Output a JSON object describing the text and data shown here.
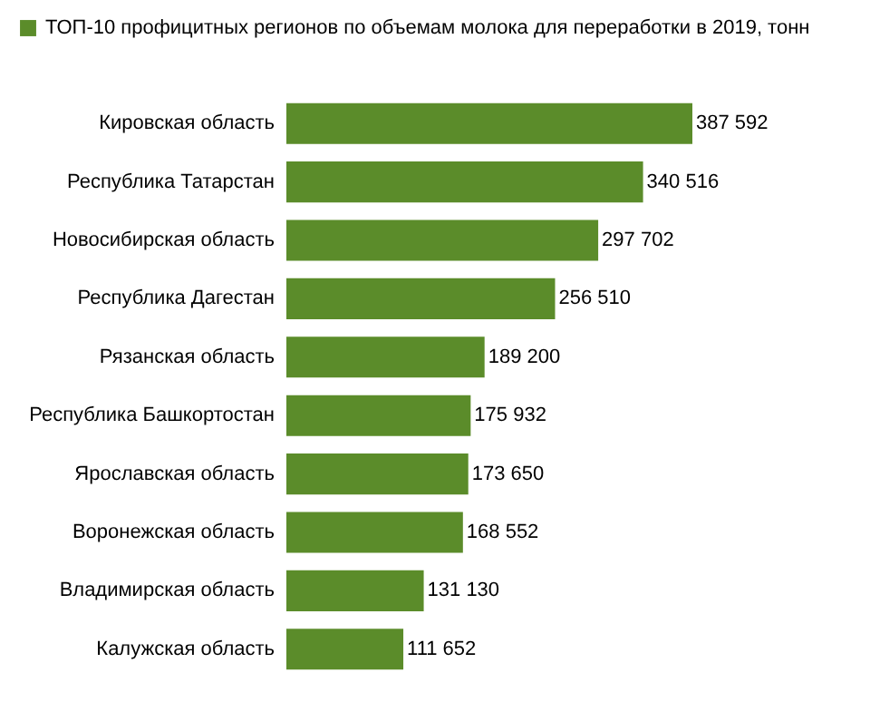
{
  "chart_data": {
    "type": "bar",
    "orientation": "horizontal",
    "legend": "top",
    "data_labels": true,
    "categories": [
      "Кировская область",
      "Республика Татарстан",
      "Новосибирская область",
      "Республика Дагестан",
      "Рязанская область",
      "Республика Башкортостан",
      "Ярославская область",
      "Воронежская область",
      "Владимирская область",
      "Калужская область"
    ],
    "series": [
      {
        "name": "ТОП-10 профицитных регионов по объемам молока для переработки в 2019, тонн",
        "color": "#5b8c2a",
        "values": [
          387592,
          340516,
          297702,
          256510,
          189200,
          175932,
          173650,
          168552,
          131130,
          111652
        ],
        "value_labels": [
          "387 592",
          "340 516",
          "297 702",
          "256 510",
          "189 200",
          "175 932",
          "173 650",
          "168 552",
          "131 130",
          "111 652"
        ]
      }
    ]
  }
}
